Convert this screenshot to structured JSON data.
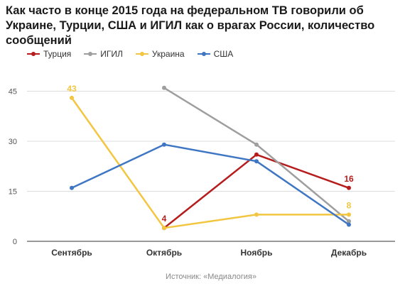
{
  "chart_data": {
    "type": "line",
    "title": "Как часто в конце 2015 года на федеральном ТВ говорили об Украине, Турции, США и ИГИЛ как о врагах России, количество сообщений",
    "xlabel": "",
    "ylabel": "",
    "categories": [
      "Сентябрь",
      "Октябрь",
      "Ноябрь",
      "Декабрь"
    ],
    "yticks": [
      0,
      15,
      30,
      45
    ],
    "ylim": [
      0,
      50
    ],
    "grid": true,
    "legend_position": "top-left",
    "series": [
      {
        "name": "Турция",
        "color": "#b71c1c",
        "values": [
          null,
          4,
          26,
          16
        ],
        "labels": [
          null,
          "4",
          null,
          "16"
        ]
      },
      {
        "name": "ИГИЛ",
        "color": "#9e9e9e",
        "values": [
          null,
          46,
          29,
          6
        ],
        "labels": [
          null,
          null,
          null,
          null
        ]
      },
      {
        "name": "Украина",
        "color": "#f2c641",
        "values": [
          43,
          4,
          8,
          8
        ],
        "labels": [
          "43",
          null,
          null,
          "8"
        ]
      },
      {
        "name": "США",
        "color": "#3f76c4",
        "values": [
          16,
          29,
          24,
          5
        ],
        "labels": [
          null,
          null,
          null,
          null
        ]
      }
    ],
    "source": "Источник: «Медиалогия»"
  }
}
